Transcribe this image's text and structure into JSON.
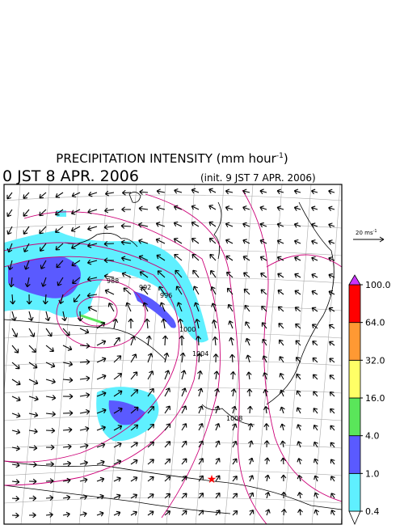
{
  "header": {
    "title": "PRECIPITATION INTENSITY (mm hour",
    "title_exponent": "-1",
    "title_end": ")",
    "valid_time": "0 JST 8 APR. 2006",
    "init_time": "(init. 9 JST 7 APR. 2006)"
  },
  "vector_key": {
    "label": "20 ms",
    "exponent": "-1"
  },
  "colorbar": {
    "levels": [
      {
        "value": 0.4,
        "label": "0.4"
      },
      {
        "value": 1,
        "label": "1.0"
      },
      {
        "value": 4,
        "label": "4.0"
      },
      {
        "value": 16,
        "label": "16.0"
      },
      {
        "value": 32,
        "label": "32.0"
      },
      {
        "value": 64,
        "label": "64.0"
      },
      {
        "value": 100,
        "label": "100.0"
      }
    ],
    "colors": [
      "#ffffff",
      "#5ff0ff",
      "#5a5aff",
      "#5ae65a",
      "#ffff66",
      "#ff9933",
      "#ff0000",
      "#cc33ff"
    ]
  },
  "contour_labels": [
    "988",
    "992",
    "996",
    "1000",
    "1004",
    "1008"
  ]
}
